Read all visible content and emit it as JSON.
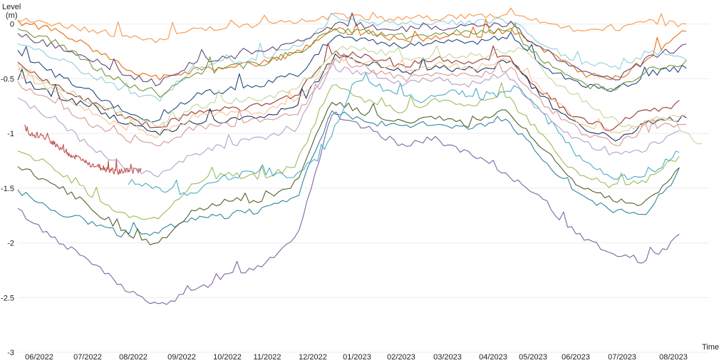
{
  "chart_data": {
    "type": "line",
    "title": "",
    "ylabel": [
      "Level",
      "(m)"
    ],
    "xlabel": "Time",
    "ylim": [
      -3,
      0.2
    ],
    "yticks": [
      0,
      -0.5,
      -1,
      -1.5,
      -2,
      -2.5,
      -3
    ],
    "ytick_labels": [
      "0",
      "-0.5",
      "-1",
      "-1.5",
      "-2",
      "-2.5",
      "-3"
    ],
    "xticks": [
      "06/2022",
      "07/2022",
      "08/2022",
      "09/2022",
      "10/2022",
      "11/2022",
      "12/2022",
      "01/2023",
      "02/2023",
      "03/2023",
      "04/2023",
      "05/2023",
      "06/2023",
      "07/2023",
      "08/2023"
    ],
    "x_range": [
      "2022-05-15",
      "2023-09-15"
    ],
    "grid": "horizontal",
    "legend": "none",
    "series_values_at_ticks_note": "",
    "series": [
      {
        "color": "#8064A2",
        "start": "2022-05-15",
        "end": "2023-08-25",
        "values": [
          -1.7,
          -1.95,
          -2.15,
          -2.4,
          -2.58,
          -2.45,
          -2.3,
          -2.2,
          -1.95,
          -0.85,
          -0.95,
          -1.1,
          -1.05,
          -1.2,
          -1.35,
          -1.6,
          -1.9,
          -2.1,
          -2.18,
          -1.95
        ]
      },
      {
        "color": "#31859C",
        "start": "2022-05-15",
        "end": "2023-08-25",
        "values": [
          -1.52,
          -1.7,
          -1.8,
          -1.92,
          -1.9,
          -1.78,
          -1.75,
          -1.7,
          -1.6,
          -0.8,
          -0.88,
          -0.95,
          -0.9,
          -0.95,
          -0.85,
          -1.2,
          -1.55,
          -1.7,
          -1.75,
          -1.35
        ]
      },
      {
        "color": "#4F6228",
        "start": "2022-05-15",
        "end": "2023-08-25",
        "values": [
          -1.3,
          -1.45,
          -1.65,
          -1.9,
          -2.02,
          -1.7,
          -1.62,
          -1.6,
          -1.45,
          -0.7,
          -0.82,
          -0.9,
          -0.85,
          -0.92,
          -0.8,
          -1.1,
          -1.45,
          -1.6,
          -1.65,
          -1.3
        ]
      },
      {
        "color": "#9BBB59",
        "start": "2022-05-15",
        "end": "2023-08-25",
        "values": [
          -1.15,
          -1.3,
          -1.55,
          -1.75,
          -1.8,
          -1.45,
          -1.38,
          -1.4,
          -1.3,
          -0.55,
          -0.7,
          -0.8,
          -0.7,
          -0.75,
          -0.65,
          -1.0,
          -1.35,
          -1.48,
          -1.45,
          -1.2
        ]
      },
      {
        "color": "#4BACC6",
        "start": "2022-08-01",
        "end": "2023-08-25",
        "values": [
          -1.45,
          -1.5,
          -1.55,
          -1.4,
          -1.35,
          -1.4,
          -1.2,
          -0.5,
          -0.6,
          -0.7,
          -0.62,
          -0.68,
          -0.58,
          -0.9,
          -1.25,
          -1.4,
          -1.4,
          -1.15
        ]
      },
      {
        "color": "#C0504D",
        "start": "2022-05-20",
        "end": "2022-08-10",
        "values": [
          -0.98,
          -1.05,
          -1.2,
          -1.3,
          -1.35,
          -1.33
        ]
      },
      {
        "color": "#B3A2C7",
        "start": "2022-05-15",
        "end": "2023-08-25",
        "values": [
          -0.7,
          -0.85,
          -1.1,
          -1.3,
          -1.38,
          -1.2,
          -1.1,
          -1.05,
          -0.95,
          -0.4,
          -0.45,
          -0.55,
          -0.5,
          -0.55,
          -0.45,
          -0.8,
          -1.05,
          -1.2,
          -1.15,
          -0.95
        ]
      },
      {
        "color": "#E46C0A",
        "start": "2022-05-15",
        "end": "2023-08-30",
        "values": [
          0.02,
          -0.05,
          -0.2,
          -0.4,
          -0.5,
          -0.42,
          -0.4,
          -0.35,
          -0.25,
          -0.05,
          -0.1,
          -0.15,
          -0.12,
          -0.1,
          -0.05,
          -0.25,
          -0.45,
          -0.5,
          -0.3,
          -0.05
        ]
      },
      {
        "color": "#1F497D",
        "start": "2022-05-15",
        "end": "2023-08-30",
        "values": [
          -0.25,
          -0.45,
          -0.6,
          -0.8,
          -0.9,
          -0.65,
          -0.6,
          -0.55,
          -0.45,
          -0.1,
          -0.15,
          -0.2,
          -0.15,
          -0.18,
          -0.1,
          -0.4,
          -0.55,
          -0.6,
          -0.45,
          -0.4
        ]
      },
      {
        "color": "#943634",
        "start": "2022-05-15",
        "end": "2023-08-25",
        "values": [
          -0.35,
          -0.55,
          -0.7,
          -0.85,
          -0.95,
          -0.8,
          -0.78,
          -0.75,
          -0.65,
          -0.25,
          -0.3,
          -0.38,
          -0.32,
          -0.35,
          -0.28,
          -0.6,
          -0.85,
          -0.95,
          -0.8,
          -0.75
        ]
      },
      {
        "color": "#F79646",
        "start": "2022-05-15",
        "end": "2023-08-30",
        "values": [
          0.03,
          0.0,
          -0.05,
          -0.1,
          -0.15,
          -0.05,
          -0.02,
          0.0,
          0.02,
          0.08,
          0.06,
          0.05,
          0.06,
          0.07,
          0.08,
          0.0,
          -0.05,
          -0.05,
          0.02,
          0.0
        ]
      },
      {
        "color": "#17375E",
        "start": "2022-05-15",
        "end": "2023-08-30",
        "values": [
          -0.5,
          -0.65,
          -0.75,
          -0.9,
          -1.0,
          -0.9,
          -0.88,
          -0.85,
          -0.75,
          -0.3,
          -0.35,
          -0.45,
          -0.4,
          -0.42,
          -0.35,
          -0.7,
          -0.95,
          -1.05,
          -0.9,
          -0.85
        ]
      },
      {
        "color": "#C3D69B",
        "start": "2022-05-15",
        "end": "2023-09-10",
        "values": [
          -0.4,
          -0.55,
          -0.7,
          -0.85,
          -0.92,
          -0.75,
          -0.7,
          -0.68,
          -0.55,
          -0.2,
          -0.25,
          -0.32,
          -0.28,
          -0.3,
          -0.22,
          -0.55,
          -0.78,
          -0.95,
          -0.85,
          -1.1
        ]
      },
      {
        "color": "#92CDDC",
        "start": "2022-05-15",
        "end": "2023-08-30",
        "values": [
          -0.15,
          -0.3,
          -0.45,
          -0.6,
          -0.7,
          -0.4,
          -0.35,
          -0.3,
          -0.2,
          0.05,
          0.02,
          0.0,
          0.01,
          0.02,
          0.03,
          -0.2,
          -0.35,
          -0.4,
          -0.25,
          -0.3
        ]
      },
      {
        "color": "#D99694",
        "start": "2022-05-15",
        "end": "2023-08-30",
        "values": [
          -0.55,
          -0.7,
          -0.9,
          -1.05,
          -1.1,
          -0.95,
          -0.92,
          -0.88,
          -0.8,
          -0.35,
          -0.42,
          -0.5,
          -0.45,
          -0.48,
          -0.4,
          -0.75,
          -0.98,
          -1.1,
          -0.95,
          -0.9
        ]
      },
      {
        "color": "#60497A",
        "start": "2022-05-15",
        "end": "2023-08-30",
        "values": [
          -0.1,
          -0.2,
          -0.3,
          -0.45,
          -0.55,
          -0.35,
          -0.3,
          -0.25,
          -0.15,
          0.0,
          -0.02,
          -0.05,
          -0.03,
          -0.02,
          0.0,
          -0.25,
          -0.45,
          -0.5,
          -0.3,
          -0.2
        ]
      },
      {
        "color": "#77933C",
        "start": "2022-05-15",
        "end": "2023-08-30",
        "values": [
          -0.05,
          -0.15,
          -0.35,
          -0.55,
          -0.65,
          -0.45,
          -0.4,
          -0.35,
          -0.25,
          -0.05,
          -0.08,
          -0.12,
          -0.1,
          -0.08,
          -0.05,
          -0.35,
          -0.55,
          -0.6,
          -0.4,
          -0.35
        ]
      },
      {
        "color": "#FAC090",
        "start": "2022-05-15",
        "end": "2023-08-30",
        "values": [
          -0.45,
          -0.6,
          -0.8,
          -0.95,
          -1.02,
          -0.85,
          -0.82,
          -0.8,
          -0.7,
          -0.3,
          -0.35,
          -0.42,
          -0.38,
          -0.4,
          -0.32,
          -0.65,
          -0.9,
          -1.0,
          -0.88,
          -0.82
        ]
      }
    ]
  }
}
